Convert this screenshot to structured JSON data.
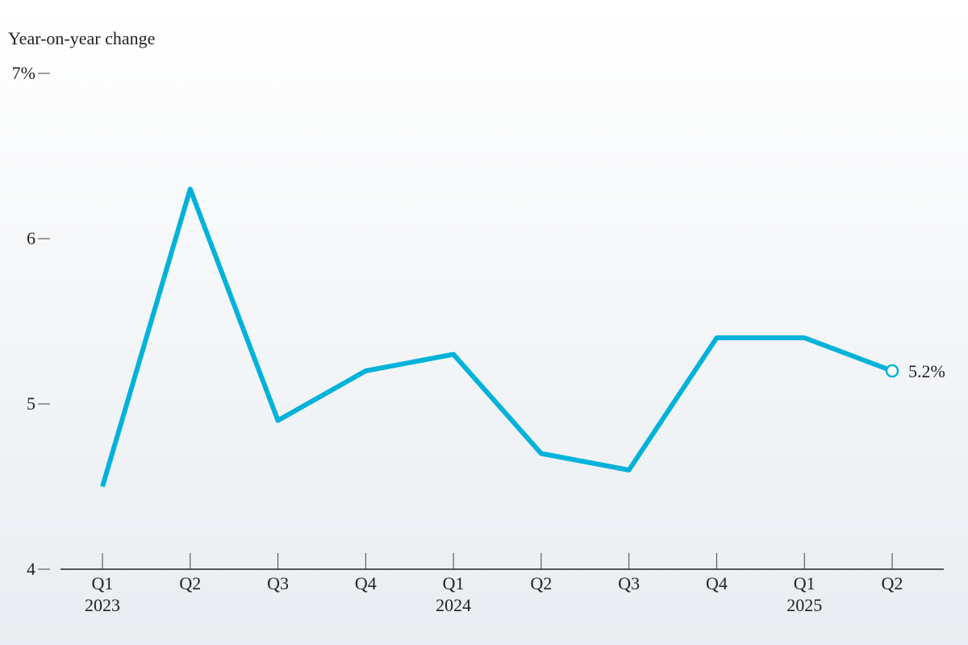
{
  "chart_data": {
    "type": "line",
    "y_axis_label": "Year-on-year change",
    "categories": [
      "Q1",
      "Q2",
      "Q3",
      "Q4",
      "Q1",
      "Q2",
      "Q3",
      "Q4",
      "Q1",
      "Q2"
    ],
    "year_labels": [
      "2023",
      null,
      null,
      null,
      "2024",
      null,
      null,
      null,
      "2025",
      null
    ],
    "series": [
      {
        "color": "#00b2da",
        "values": [
          4.5,
          6.3,
          4.9,
          5.2,
          5.3,
          4.7,
          4.6,
          5.4,
          5.4,
          5.2
        ],
        "value_labels": [
          null,
          null,
          null,
          null,
          null,
          null,
          null,
          null,
          null,
          "5.2%"
        ]
      }
    ],
    "ylim": [
      4,
      7
    ],
    "yticks": [
      4,
      5,
      6,
      {
        "value": 7,
        "label": "7%"
      }
    ]
  }
}
